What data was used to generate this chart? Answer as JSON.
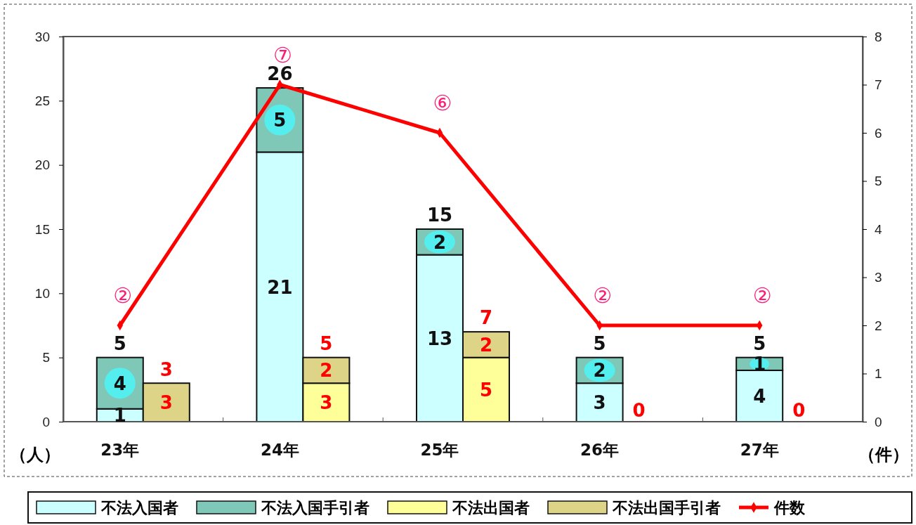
{
  "chart_data": {
    "type": "bar",
    "stacked": true,
    "categories": [
      "23年",
      null,
      "24年",
      null,
      "25年",
      null,
      "26年",
      null,
      "27年",
      null
    ],
    "ylim": [
      0,
      30
    ],
    "yticks": [
      0,
      5,
      10,
      15,
      20,
      25,
      30
    ],
    "y2lim": [
      0,
      8
    ],
    "y2ticks": [
      0,
      1,
      2,
      3,
      4,
      5,
      6,
      7,
      8
    ],
    "ylabel": "（人）",
    "y2label": "（件）",
    "legend": "bottom",
    "grid": false,
    "series": [
      {
        "name": "不法入国者",
        "color": "#ccffff",
        "values": [
          1,
          null,
          21,
          null,
          13,
          null,
          3,
          null,
          4,
          null
        ],
        "value_labels": [
          "1",
          null,
          "21",
          null,
          "13",
          null,
          "3",
          null,
          "4",
          null
        ]
      },
      {
        "name": "不法入国手引者",
        "color": "#7fc8b8",
        "values": [
          4,
          null,
          5,
          null,
          2,
          null,
          2,
          null,
          1,
          null
        ],
        "value_labels": [
          "4",
          null,
          "5",
          null,
          "2",
          null,
          "2",
          null,
          "1",
          null
        ]
      },
      {
        "name": "不法出国者",
        "color": "#ffff99",
        "values": [
          null,
          0,
          null,
          3,
          null,
          5,
          null,
          0,
          null,
          0
        ],
        "value_labels": [
          null,
          null,
          null,
          "3",
          null,
          "5",
          null,
          null,
          null,
          null
        ]
      },
      {
        "name": "不法出国手引者",
        "color": "#ddd488",
        "values": [
          null,
          3,
          null,
          2,
          null,
          2,
          null,
          0,
          null,
          0
        ],
        "value_labels": [
          null,
          "3",
          null,
          "2",
          null,
          "2",
          null,
          null,
          null,
          null
        ]
      },
      {
        "name": "件数",
        "type": "line",
        "axis": "y2",
        "color": "#ff0000",
        "marker": "diamond",
        "x": [
          "23年",
          "24年",
          "25年",
          "26年",
          "27年"
        ],
        "values": [
          2,
          7,
          6,
          2,
          2
        ],
        "value_labels": [
          "②",
          "⑦",
          "⑥",
          "②",
          "②"
        ]
      }
    ],
    "totals": [
      "5",
      "3",
      "26",
      "5",
      "15",
      "7",
      "5",
      "0",
      "5",
      "0"
    ]
  }
}
